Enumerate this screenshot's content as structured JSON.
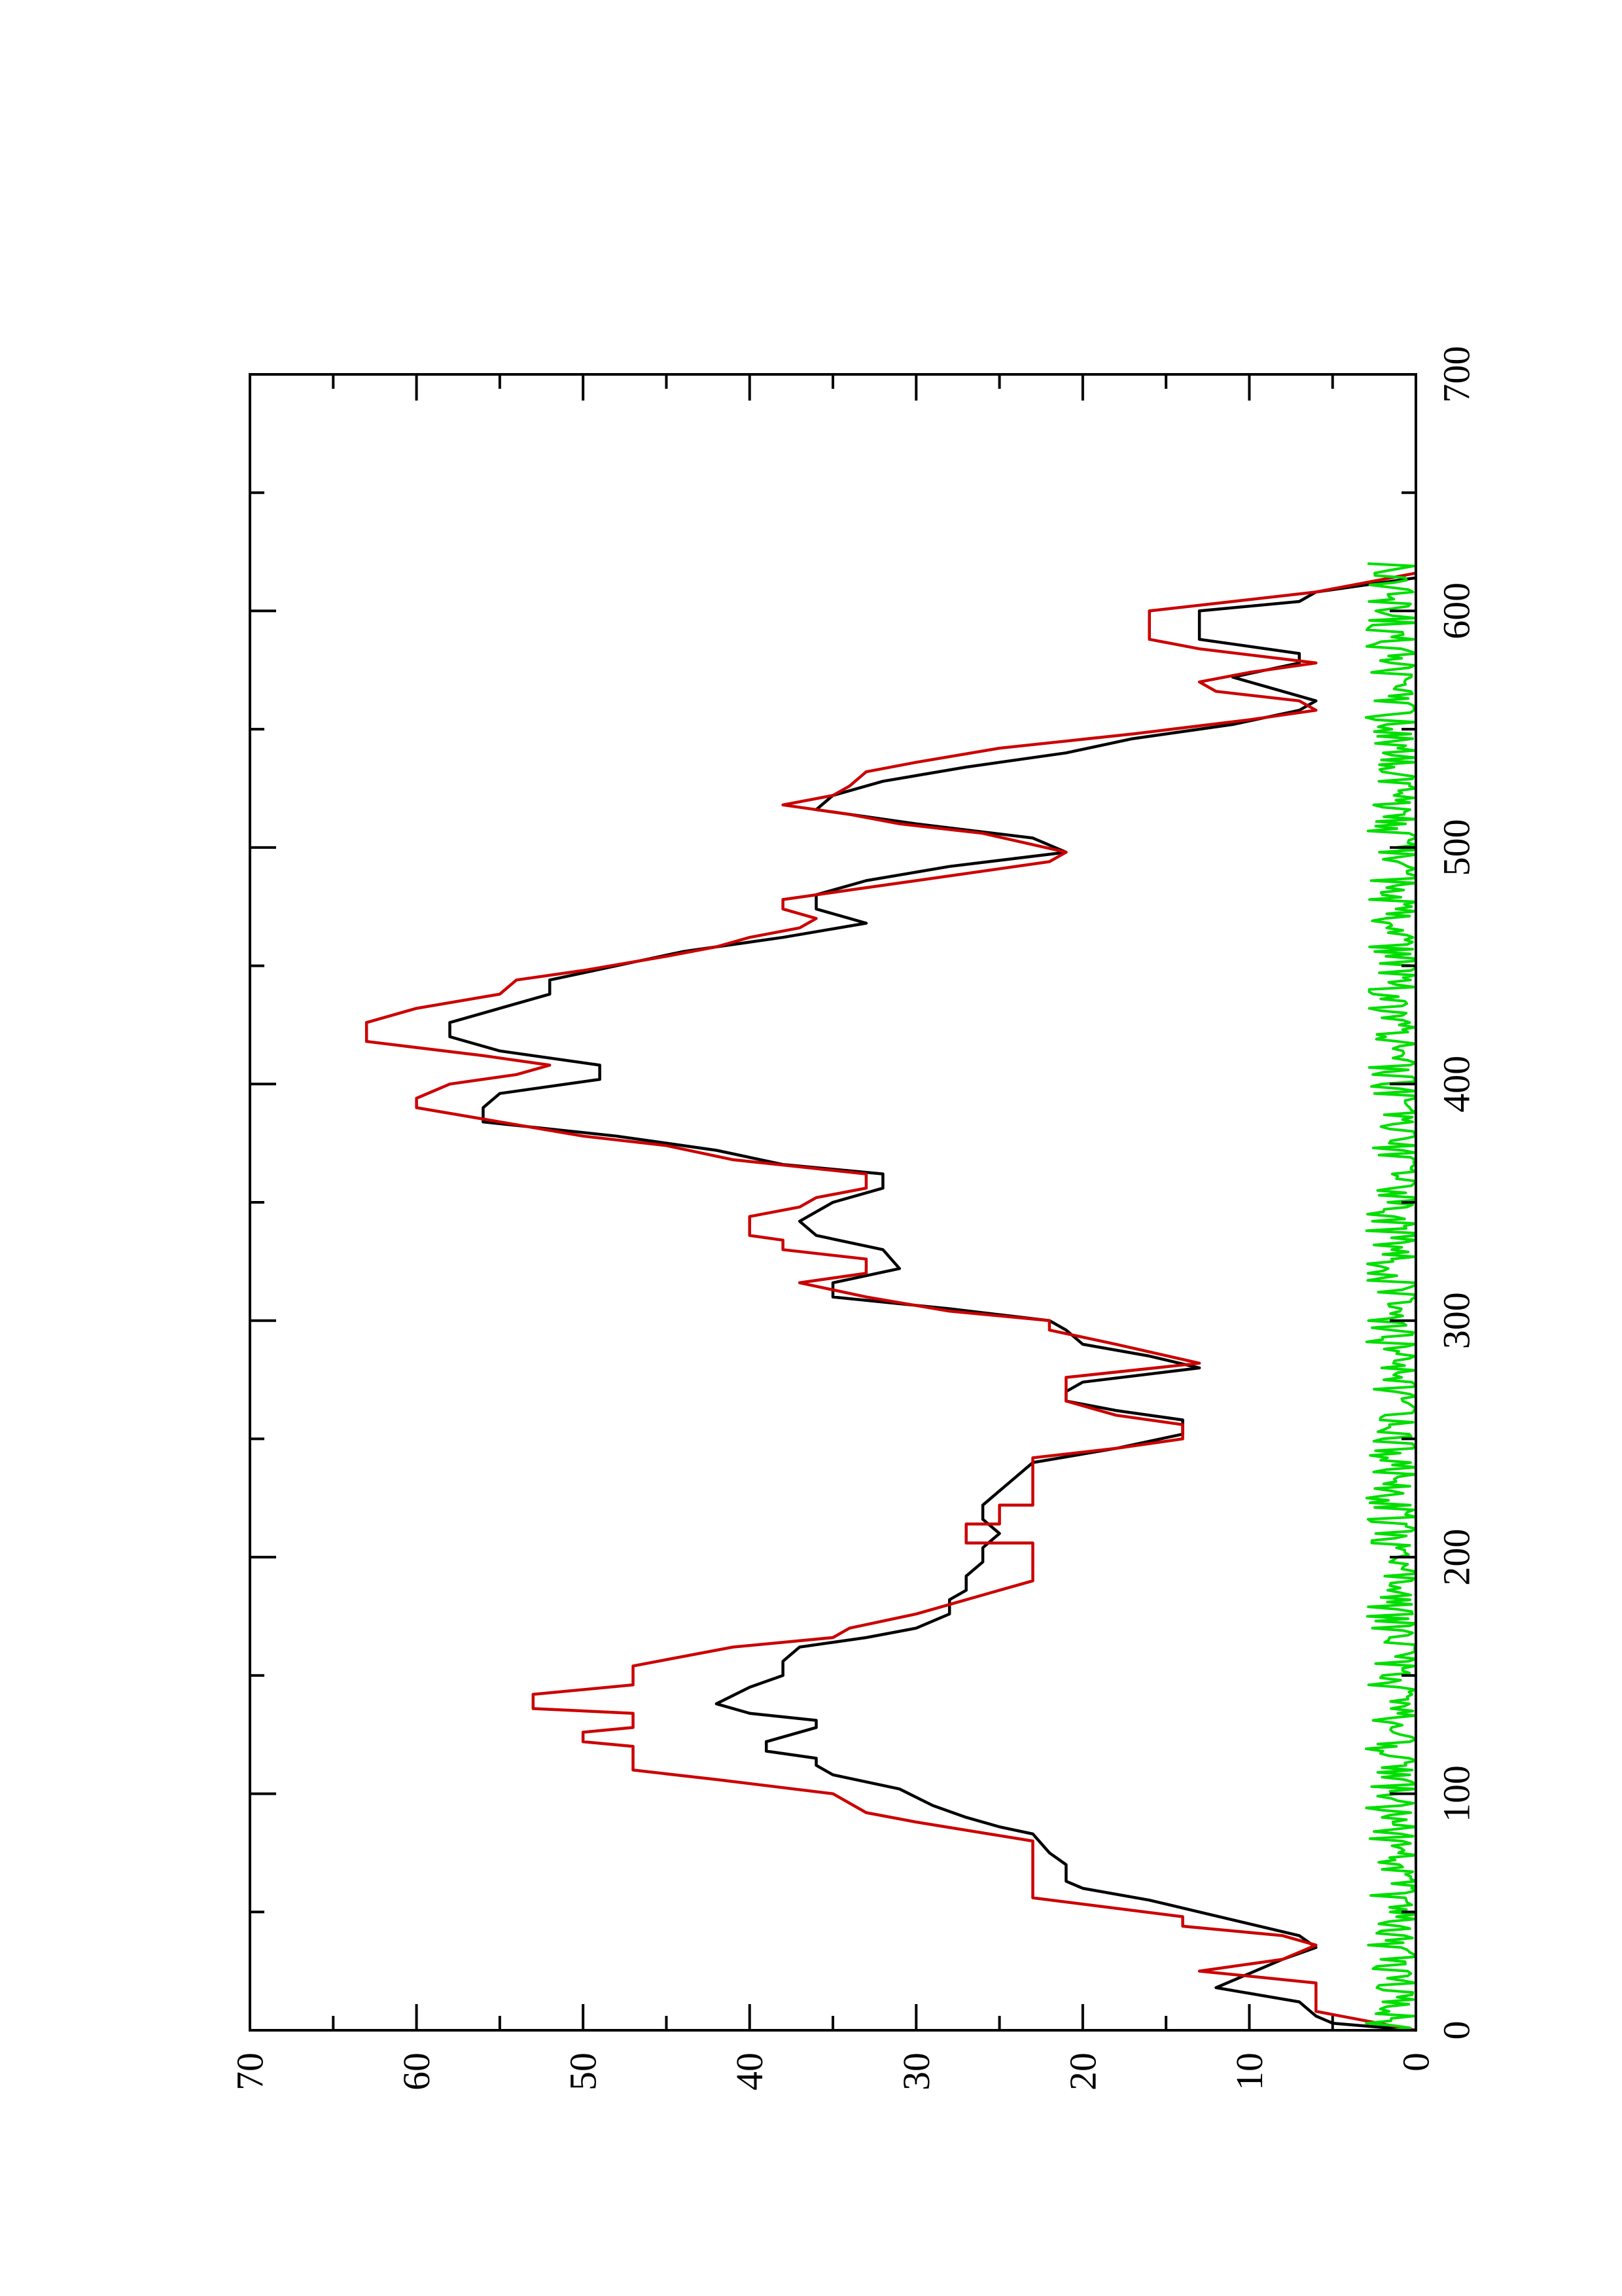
{
  "chart_data": {
    "type": "line",
    "orientation": "rotated 90 degrees counter-clockwise (page in landscape)",
    "title": "",
    "xlabel": "",
    "ylabel": "",
    "xlim": [
      0,
      700
    ],
    "ylim": [
      0,
      70
    ],
    "x_ticks": [
      "0",
      "100",
      "200",
      "300",
      "400",
      "500",
      "600",
      "700"
    ],
    "y_ticks": [
      "0",
      "10",
      "20",
      "30",
      "40",
      "50",
      "60",
      "70"
    ],
    "x_minor_step": 50,
    "y_minor_step": 5,
    "grid": false,
    "legend": "none",
    "series": [
      {
        "color": "#000000",
        "style": "smooth",
        "points": [
          [
            0,
            0
          ],
          [
            3,
            5
          ],
          [
            6,
            6
          ],
          [
            12,
            7
          ],
          [
            18,
            12
          ],
          [
            24,
            10
          ],
          [
            30,
            8
          ],
          [
            35,
            6
          ],
          [
            40,
            7
          ],
          [
            50,
            13
          ],
          [
            55,
            16
          ],
          [
            60,
            20
          ],
          [
            63,
            21
          ],
          [
            70,
            21
          ],
          [
            75,
            22
          ],
          [
            83,
            23
          ],
          [
            86,
            25
          ],
          [
            90,
            27
          ],
          [
            95,
            29
          ],
          [
            102,
            31
          ],
          [
            108,
            35
          ],
          [
            112,
            36
          ],
          [
            115,
            36
          ],
          [
            118,
            39
          ],
          [
            122,
            39
          ],
          [
            128,
            36
          ],
          [
            131,
            36
          ],
          [
            134,
            40
          ],
          [
            138,
            42
          ],
          [
            145,
            40
          ],
          [
            150,
            38
          ],
          [
            156,
            38
          ],
          [
            162,
            37
          ],
          [
            166,
            33
          ],
          [
            170,
            30
          ],
          [
            176,
            28
          ],
          [
            182,
            28
          ],
          [
            186,
            27
          ],
          [
            192,
            27
          ],
          [
            198,
            26
          ],
          [
            204,
            26
          ],
          [
            210,
            25
          ],
          [
            216,
            26
          ],
          [
            222,
            26
          ],
          [
            228,
            25
          ],
          [
            234,
            24
          ],
          [
            240,
            23
          ],
          [
            246,
            18
          ],
          [
            252,
            14
          ],
          [
            258,
            14
          ],
          [
            262,
            18
          ],
          [
            266,
            21
          ],
          [
            270,
            21
          ],
          [
            274,
            20
          ],
          [
            280,
            13
          ],
          [
            285,
            16
          ],
          [
            290,
            20
          ],
          [
            296,
            21
          ],
          [
            300,
            22
          ],
          [
            305,
            28
          ],
          [
            310,
            35
          ],
          [
            316,
            35
          ],
          [
            322,
            31
          ],
          [
            330,
            32
          ],
          [
            336,
            36
          ],
          [
            342,
            37
          ],
          [
            350,
            35
          ],
          [
            356,
            32
          ],
          [
            362,
            32
          ],
          [
            366,
            38
          ],
          [
            372,
            42
          ],
          [
            378,
            48
          ],
          [
            384,
            56
          ],
          [
            390,
            56
          ],
          [
            396,
            55
          ],
          [
            402,
            49
          ],
          [
            408,
            49
          ],
          [
            414,
            55
          ],
          [
            420,
            58
          ],
          [
            426,
            58
          ],
          [
            432,
            55
          ],
          [
            438,
            52
          ],
          [
            444,
            52
          ],
          [
            450,
            48
          ],
          [
            456,
            44
          ],
          [
            462,
            38
          ],
          [
            468,
            33
          ],
          [
            474,
            36
          ],
          [
            480,
            36
          ],
          [
            486,
            33
          ],
          [
            492,
            28
          ],
          [
            498,
            21
          ],
          [
            504,
            23
          ],
          [
            510,
            30
          ],
          [
            516,
            36
          ],
          [
            522,
            35
          ],
          [
            528,
            32
          ],
          [
            534,
            27
          ],
          [
            540,
            21
          ],
          [
            546,
            17
          ],
          [
            552,
            11
          ],
          [
            558,
            7
          ],
          [
            562,
            6
          ],
          [
            568,
            9
          ],
          [
            572,
            11
          ],
          [
            578,
            7
          ],
          [
            582,
            7
          ],
          [
            588,
            13
          ],
          [
            594,
            13
          ],
          [
            600,
            13
          ],
          [
            604,
            7
          ],
          [
            608,
            6
          ],
          [
            614,
            0
          ]
        ]
      },
      {
        "color": "#cc0000",
        "style": "steps",
        "points": [
          [
            0,
            0
          ],
          [
            8,
            6
          ],
          [
            20,
            6
          ],
          [
            25,
            13
          ],
          [
            30,
            8
          ],
          [
            36,
            6
          ],
          [
            40,
            8
          ],
          [
            44,
            14
          ],
          [
            48,
            14
          ],
          [
            56,
            23
          ],
          [
            80,
            23
          ],
          [
            88,
            30
          ],
          [
            92,
            33
          ],
          [
            100,
            35
          ],
          [
            106,
            42
          ],
          [
            110,
            47
          ],
          [
            120,
            47
          ],
          [
            122,
            50
          ],
          [
            126,
            50
          ],
          [
            128,
            47
          ],
          [
            134,
            47
          ],
          [
            136,
            53
          ],
          [
            142,
            53
          ],
          [
            146,
            47
          ],
          [
            154,
            47
          ],
          [
            162,
            41
          ],
          [
            166,
            35
          ],
          [
            170,
            34
          ],
          [
            176,
            30
          ],
          [
            180,
            28
          ],
          [
            186,
            25
          ],
          [
            190,
            23
          ],
          [
            206,
            23
          ],
          [
            206,
            27
          ],
          [
            214,
            27
          ],
          [
            214,
            25
          ],
          [
            222,
            25
          ],
          [
            222,
            23
          ],
          [
            242,
            23
          ],
          [
            246,
            18
          ],
          [
            250,
            14
          ],
          [
            256,
            14
          ],
          [
            260,
            18
          ],
          [
            266,
            21
          ],
          [
            276,
            21
          ],
          [
            282,
            13
          ],
          [
            290,
            18
          ],
          [
            296,
            22
          ],
          [
            300,
            22
          ],
          [
            304,
            28
          ],
          [
            310,
            33
          ],
          [
            316,
            37
          ],
          [
            320,
            33
          ],
          [
            326,
            33
          ],
          [
            330,
            38
          ],
          [
            334,
            38
          ],
          [
            336,
            40
          ],
          [
            344,
            40
          ],
          [
            348,
            37
          ],
          [
            352,
            36
          ],
          [
            356,
            33
          ],
          [
            362,
            33
          ],
          [
            368,
            41
          ],
          [
            374,
            45
          ],
          [
            378,
            50
          ],
          [
            384,
            55
          ],
          [
            390,
            60
          ],
          [
            394,
            60
          ],
          [
            400,
            58
          ],
          [
            404,
            54
          ],
          [
            408,
            52
          ],
          [
            412,
            56
          ],
          [
            418,
            63
          ],
          [
            426,
            63
          ],
          [
            432,
            60
          ],
          [
            438,
            55
          ],
          [
            444,
            54
          ],
          [
            448,
            50
          ],
          [
            454,
            45
          ],
          [
            458,
            42
          ],
          [
            462,
            40
          ],
          [
            466,
            37
          ],
          [
            470,
            36
          ],
          [
            474,
            38
          ],
          [
            478,
            38
          ],
          [
            482,
            34
          ],
          [
            486,
            30
          ],
          [
            494,
            22
          ],
          [
            498,
            21
          ],
          [
            506,
            26
          ],
          [
            510,
            31
          ],
          [
            514,
            34
          ],
          [
            518,
            38
          ],
          [
            522,
            35
          ],
          [
            526,
            34
          ],
          [
            532,
            33
          ],
          [
            536,
            30
          ],
          [
            542,
            25
          ],
          [
            548,
            17
          ],
          [
            554,
            10
          ],
          [
            558,
            6
          ],
          [
            562,
            7
          ],
          [
            566,
            12
          ],
          [
            570,
            13
          ],
          [
            574,
            10
          ],
          [
            578,
            6
          ],
          [
            584,
            13
          ],
          [
            588,
            16
          ],
          [
            594,
            16
          ],
          [
            600,
            16
          ],
          [
            604,
            11
          ],
          [
            608,
            6
          ],
          [
            612,
            3
          ],
          [
            616,
            0
          ]
        ]
      },
      {
        "color": "#00dd00",
        "style": "noise",
        "x_range": [
          0,
          620
        ],
        "amplitude_range": [
          0,
          3
        ],
        "samples": 620
      }
    ]
  }
}
